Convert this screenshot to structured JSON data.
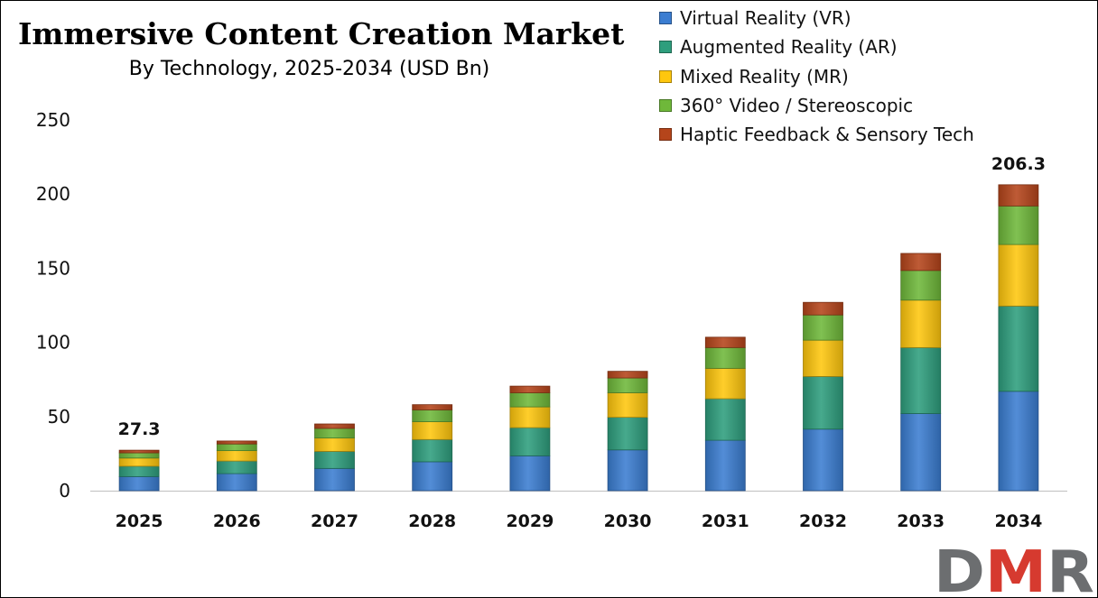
{
  "chart_data": {
    "type": "bar",
    "stacked": true,
    "title": "Immersive Content Creation Market",
    "subtitle": "By Technology, 2025-2034 (USD Bn)",
    "categories": [
      "2025",
      "2026",
      "2027",
      "2028",
      "2029",
      "2030",
      "2031",
      "2032",
      "2033",
      "2034"
    ],
    "series": [
      {
        "name": "Virtual Reality (VR)",
        "color": "#3B7DD1",
        "values": [
          9.5,
          11.5,
          15,
          19.5,
          23.5,
          27.5,
          34,
          41.5,
          52,
          67
        ]
      },
      {
        "name": "Augmented Reality (AR)",
        "color": "#2E9E7D",
        "values": [
          7,
          8.5,
          11.5,
          15,
          19,
          22,
          28,
          35.5,
          44.5,
          57.5
        ]
      },
      {
        "name": "Mixed Reality (MR)",
        "color": "#FFC70E",
        "values": [
          5.5,
          7,
          9,
          12,
          14,
          16.5,
          20.5,
          24.5,
          32,
          41.5
        ]
      },
      {
        "name": "360° Video / Stereoscopic",
        "color": "#6FB83A",
        "values": [
          3.5,
          4.5,
          6.5,
          8,
          9.5,
          10,
          14,
          17,
          20,
          26
        ]
      },
      {
        "name": "Haptic Feedback & Sensory Tech",
        "color": "#B5451B",
        "values": [
          1.8,
          2,
          3,
          3.5,
          4.5,
          4.5,
          7,
          8.5,
          11.5,
          14.3
        ]
      }
    ],
    "totals_labels": [
      {
        "category": "2025",
        "text": "27.3"
      },
      {
        "category": "2034",
        "text": "206.3"
      }
    ],
    "ylim": [
      0,
      250
    ],
    "yticks": [
      "0",
      "50",
      "100",
      "150",
      "200",
      "250"
    ],
    "xlabel": "",
    "ylabel": "",
    "legend_position": "top-right",
    "grid": false
  },
  "branding": {
    "logo_text": "DMR",
    "logo_colors": {
      "d": "#6C6E70",
      "m": "#D63A2F",
      "r": "#6C6E70"
    }
  }
}
